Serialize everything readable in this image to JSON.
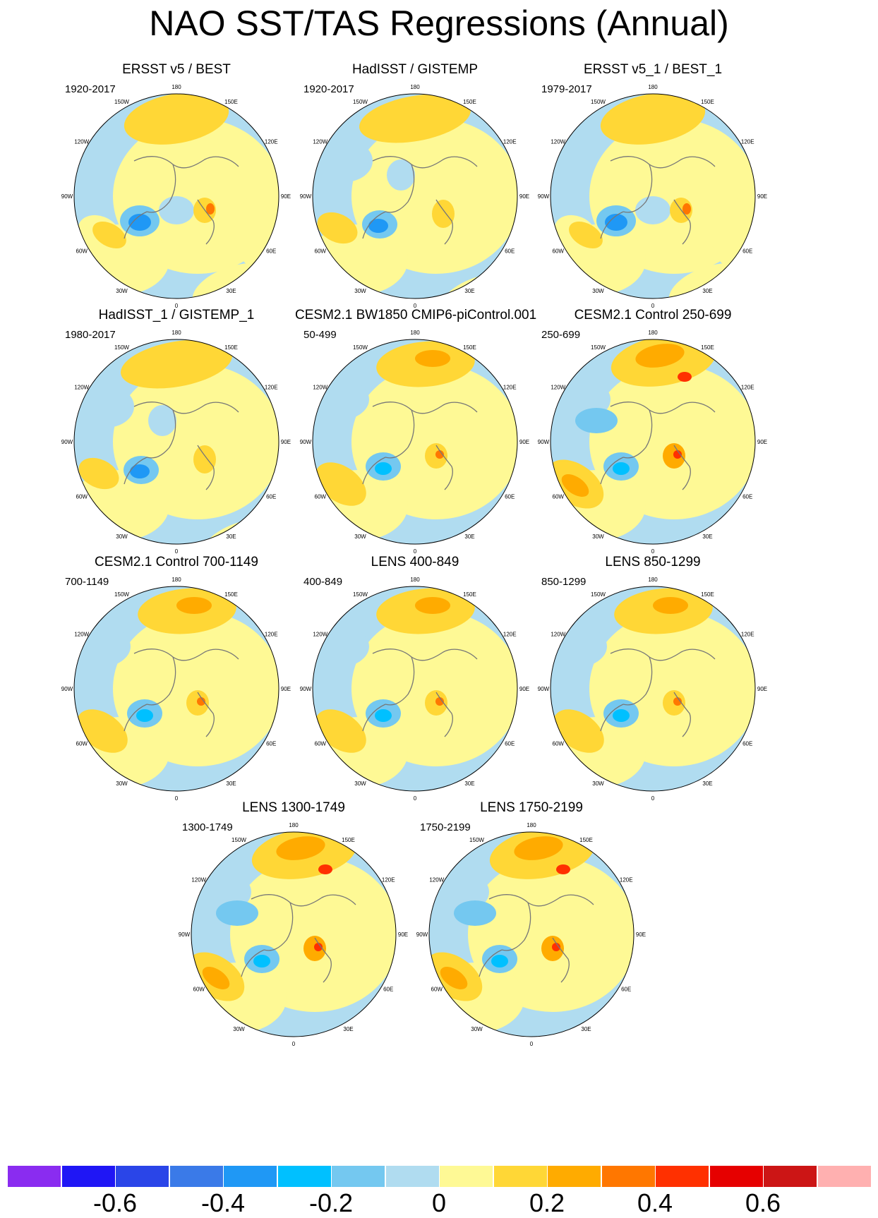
{
  "title": "NAO SST/TAS Regressions (Annual)",
  "longitude_labels": [
    "180",
    "150E",
    "120E",
    "90E",
    "60E",
    "30E",
    "0",
    "30W",
    "60W",
    "90W",
    "120W",
    "150W"
  ],
  "panels": [
    {
      "title": "ERSST v5 / BEST",
      "period": "1920-2017",
      "pattern": "obs"
    },
    {
      "title": "HadISST / GISTEMP",
      "period": "1920-2017",
      "pattern": "obs-ice"
    },
    {
      "title": "ERSST v5_1 / BEST_1",
      "period": "1979-2017",
      "pattern": "obs"
    },
    {
      "title": "HadISST_1 / GISTEMP_1",
      "period": "1980-2017",
      "pattern": "obs-ice"
    },
    {
      "title": "CESM2.1 BW1850 CMIP6-piControl.001",
      "period": "50-499",
      "pattern": "model"
    },
    {
      "title": "CESM2.1 Control 250-699",
      "period": "250-699",
      "pattern": "model-strong"
    },
    {
      "title": "CESM2.1 Control 700-1149",
      "period": "700-1149",
      "pattern": "model"
    },
    {
      "title": "LENS 400-849",
      "period": "400-849",
      "pattern": "model"
    },
    {
      "title": "LENS 850-1299",
      "period": "850-1299",
      "pattern": "model"
    },
    {
      "title": "LENS 1300-1749",
      "period": "1300-1749",
      "pattern": "model-strong"
    },
    {
      "title": "LENS 1750-2199",
      "period": "1750-2199",
      "pattern": "model-strong"
    }
  ],
  "colorbar": {
    "colors": [
      "#8a2cf0",
      "#1f16f5",
      "#2a45e8",
      "#3a7ae8",
      "#1f98f5",
      "#00c0ff",
      "#74c8f0",
      "#b0dcf0",
      "#fef995",
      "#ffd736",
      "#ffab00",
      "#ff7700",
      "#ff3000",
      "#e60000",
      "#cc1515",
      "#ffb0b0"
    ],
    "labels": [
      "-0.6",
      "-0.4",
      "-0.2",
      "0",
      "0.2",
      "0.4",
      "0.6"
    ],
    "label_values": [
      -0.6,
      -0.4,
      -0.2,
      0,
      0.2,
      0.4,
      0.6
    ]
  }
}
